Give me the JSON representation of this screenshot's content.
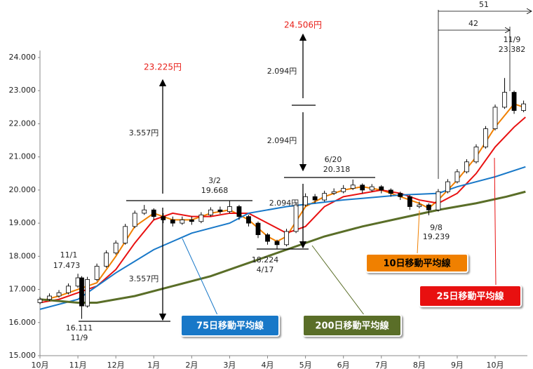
{
  "chart_data": {
    "type": "candlestick",
    "xlim": [
      0,
      12.85
    ],
    "xticks": [
      {
        "value": 0,
        "label": "10月"
      },
      {
        "value": 1,
        "label": "11月"
      },
      {
        "value": 2,
        "label": "12月"
      },
      {
        "value": 3,
        "label": "1月"
      },
      {
        "value": 4,
        "label": "2月"
      },
      {
        "value": 5,
        "label": "3月"
      },
      {
        "value": 6,
        "label": "4月"
      },
      {
        "value": 7,
        "label": "5月"
      },
      {
        "value": 8,
        "label": "6月"
      },
      {
        "value": 9,
        "label": "7月"
      },
      {
        "value": 10,
        "label": "8月"
      },
      {
        "value": 11,
        "label": "9月"
      },
      {
        "value": 12,
        "label": "10月"
      }
    ],
    "ylim": [
      15000,
      24000
    ],
    "yticks": [
      {
        "value": 15000,
        "label": "15.000"
      },
      {
        "value": 16000,
        "label": "16.000"
      },
      {
        "value": 17000,
        "label": "17.000"
      },
      {
        "value": 18000,
        "label": "18.000"
      },
      {
        "value": 19000,
        "label": "19.000"
      },
      {
        "value": 20000,
        "label": "20.000"
      },
      {
        "value": 21000,
        "label": "21.000"
      },
      {
        "value": 22000,
        "label": "22.000"
      },
      {
        "value": 23000,
        "label": "23.000"
      },
      {
        "value": 24000,
        "label": "24.000"
      }
    ],
    "x": [
      0,
      0.25,
      0.5,
      0.75,
      1,
      1.1,
      1.25,
      1.5,
      1.75,
      2,
      2.25,
      2.5,
      2.75,
      3,
      3.25,
      3.5,
      3.75,
      4,
      4.25,
      4.5,
      4.75,
      5,
      5.25,
      5.5,
      5.75,
      6,
      6.25,
      6.5,
      6.75,
      7,
      7.25,
      7.5,
      7.75,
      8,
      8.25,
      8.5,
      8.75,
      9,
      9.25,
      9.5,
      9.75,
      10,
      10.25,
      10.5,
      10.75,
      11,
      11.25,
      11.5,
      11.75,
      12,
      12.25,
      12.5,
      12.75
    ],
    "candles": [
      [
        16600,
        16780,
        16550,
        16700
      ],
      [
        16700,
        16880,
        16650,
        16800
      ],
      [
        16800,
        16980,
        16750,
        16900
      ],
      [
        16900,
        17180,
        16850,
        17100
      ],
      [
        17100,
        17473,
        17050,
        17350
      ],
      [
        17350,
        17400,
        16111,
        16500
      ],
      [
        16500,
        17380,
        16450,
        17300
      ],
      [
        17300,
        17780,
        17250,
        17700
      ],
      [
        17700,
        18180,
        17650,
        18100
      ],
      [
        18100,
        18480,
        18050,
        18400
      ],
      [
        18400,
        18980,
        18350,
        18900
      ],
      [
        18900,
        19380,
        18850,
        19300
      ],
      [
        19300,
        19550,
        19250,
        19400
      ],
      [
        19400,
        19450,
        19100,
        19200
      ],
      [
        19200,
        19300,
        19000,
        19100
      ],
      [
        19100,
        19200,
        18900,
        19000
      ],
      [
        19000,
        19200,
        18950,
        19100
      ],
      [
        19100,
        19200,
        18950,
        19050
      ],
      [
        19050,
        19330,
        19000,
        19250
      ],
      [
        19250,
        19480,
        19200,
        19400
      ],
      [
        19400,
        19500,
        19280,
        19350
      ],
      [
        19350,
        19668,
        19300,
        19500
      ],
      [
        19500,
        19550,
        19100,
        19200
      ],
      [
        19200,
        19250,
        18900,
        19000
      ],
      [
        19000,
        19050,
        18550,
        18650
      ],
      [
        18650,
        18700,
        18350,
        18450
      ],
      [
        18450,
        18500,
        18224,
        18350
      ],
      [
        18350,
        18830,
        18300,
        18750
      ],
      [
        18750,
        19630,
        18700,
        19550
      ],
      [
        19550,
        19900,
        19500,
        19800
      ],
      [
        19800,
        19880,
        19600,
        19700
      ],
      [
        19700,
        19980,
        19650,
        19900
      ],
      [
        19900,
        20050,
        19850,
        19950
      ],
      [
        19950,
        20150,
        19900,
        20050
      ],
      [
        20050,
        20318,
        20000,
        20150
      ],
      [
        20150,
        20200,
        19900,
        20000
      ],
      [
        20000,
        20180,
        19950,
        20100
      ],
      [
        20100,
        20150,
        19900,
        20000
      ],
      [
        20000,
        20050,
        19800,
        19900
      ],
      [
        19900,
        19950,
        19700,
        19800
      ],
      [
        19800,
        19850,
        19400,
        19500
      ],
      [
        19500,
        19650,
        19450,
        19550
      ],
      [
        19550,
        19600,
        19239,
        19400
      ],
      [
        19400,
        20030,
        19350,
        19950
      ],
      [
        19950,
        20330,
        19900,
        20250
      ],
      [
        20250,
        20630,
        20200,
        20550
      ],
      [
        20550,
        20930,
        20500,
        20850
      ],
      [
        20850,
        21380,
        20800,
        21300
      ],
      [
        21300,
        21930,
        21250,
        21850
      ],
      [
        21850,
        22580,
        21800,
        22500
      ],
      [
        22500,
        23382,
        22450,
        22950
      ],
      [
        22950,
        23000,
        22300,
        22400
      ],
      [
        22400,
        22700,
        22350,
        22600
      ]
    ],
    "series": [
      {
        "name": "10日移動平均線",
        "color": "#f08000",
        "x": [
          0,
          0.5,
          1,
          1.5,
          2,
          2.5,
          3,
          3.5,
          4,
          4.5,
          5,
          5.5,
          6,
          6.25,
          6.5,
          7,
          7.5,
          8,
          8.5,
          9,
          9.5,
          10,
          10.25,
          10.5,
          11,
          11.5,
          12,
          12.5,
          12.75
        ],
        "values": [
          16650,
          16800,
          17000,
          17200,
          18000,
          18900,
          19300,
          19100,
          19100,
          19300,
          19400,
          19100,
          18600,
          18450,
          18600,
          19500,
          19800,
          20000,
          20100,
          20000,
          19800,
          19600,
          19450,
          19700,
          20300,
          21000,
          21900,
          22600,
          22500
        ]
      },
      {
        "name": "25日移動平均線",
        "color": "#e81010",
        "x": [
          0,
          0.5,
          1,
          1.5,
          2,
          2.5,
          3,
          3.5,
          4,
          4.5,
          5,
          5.5,
          6,
          6.5,
          7,
          7.5,
          8,
          8.5,
          9,
          9.5,
          10,
          10.5,
          11,
          11.5,
          12,
          12.5,
          12.8
        ],
        "values": [
          16600,
          16700,
          16900,
          17100,
          17600,
          18400,
          19100,
          19300,
          19200,
          19200,
          19300,
          19300,
          19000,
          18700,
          18900,
          19500,
          19800,
          19900,
          20000,
          19900,
          19700,
          19600,
          19900,
          20500,
          21300,
          21900,
          22200
        ]
      },
      {
        "name": "75日移動平均線",
        "color": "#1878c8",
        "x": [
          0,
          1,
          2,
          3,
          4,
          5,
          5.5,
          6.5,
          8,
          9.5,
          10.5,
          11,
          12,
          12.8
        ],
        "values": [
          16400,
          16700,
          17500,
          18200,
          18700,
          19000,
          19300,
          19500,
          19700,
          19850,
          19900,
          20100,
          20400,
          20700
        ]
      },
      {
        "name": "200日移動平均線",
        "color": "#5a6e28",
        "x": [
          0,
          1,
          1.5,
          2.5,
          3.5,
          4.5,
          5.5,
          6.5,
          7.5,
          8.5,
          9.5,
          10.5,
          11.5,
          12.3,
          12.8
        ],
        "values": [
          16700,
          16600,
          16600,
          16800,
          17100,
          17400,
          17800,
          18200,
          18600,
          18900,
          19150,
          19400,
          19600,
          19800,
          19950
        ]
      }
    ],
    "annotations": [
      "23.225円",
      "3.557円",
      "3.557円",
      "3/2",
      "19.668",
      "11/1",
      "17.473",
      "16.111",
      "11/9",
      "24.506円",
      "2.094円",
      "2.094円",
      "2.094円",
      "6/20",
      "20.318",
      "18.224",
      "4/17",
      "9/8",
      "19.239",
      "11/9",
      "23.382",
      "51",
      "42"
    ]
  }
}
